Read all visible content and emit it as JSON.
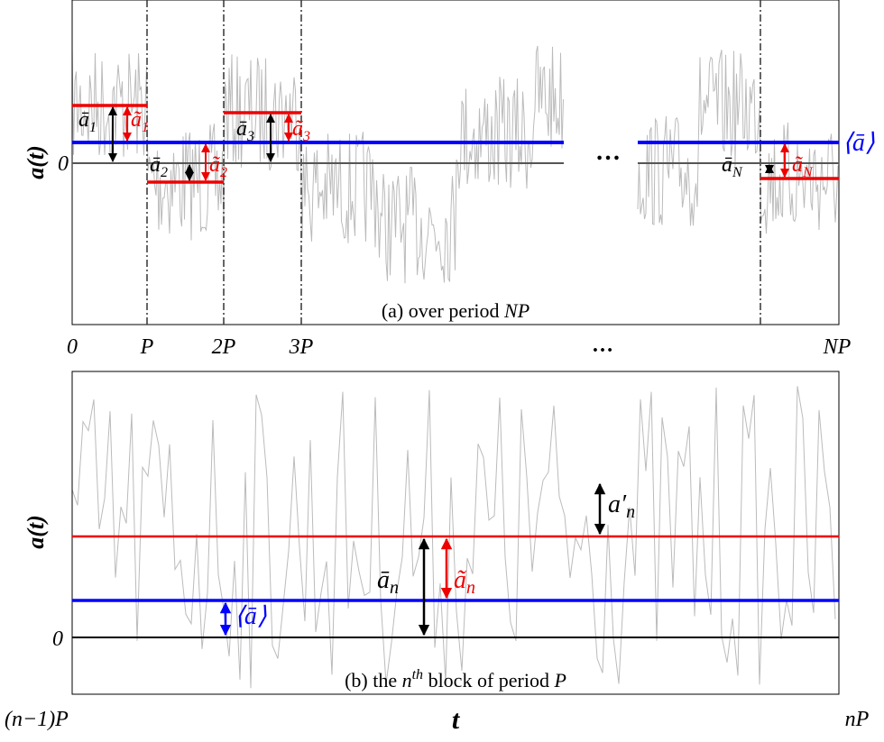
{
  "panel_a": {
    "y_label": "a(t)",
    "zero_label": "0",
    "caption": "(a) over period",
    "caption_var": "NP",
    "x_ticks": [
      "0",
      "P",
      "2P",
      "3P",
      "…",
      "NP"
    ],
    "gap": "…",
    "labels": {
      "mean_1": {
        "symbol": "ā",
        "sub": "1"
      },
      "dev_1": {
        "symbol": "ã",
        "sub": "1"
      },
      "mean_2": {
        "symbol": "ā",
        "sub": "2"
      },
      "dev_2": {
        "symbol": "ã",
        "sub": "2"
      },
      "mean_3": {
        "symbol": "ā",
        "sub": "3"
      },
      "dev_3": {
        "symbol": "ã",
        "sub": "3"
      },
      "mean_N": {
        "symbol": "ā",
        "sub": "N"
      },
      "dev_N": {
        "symbol": "ã",
        "sub": "N"
      },
      "global": "⟨ā⟩"
    }
  },
  "panel_b": {
    "y_label": "a(t)",
    "zero_label": "0",
    "caption": "(b) the",
    "caption_var": "n",
    "caption_sup": "th",
    "caption_rest": "block of period",
    "caption_var2": "P",
    "labels": {
      "mean_n": {
        "symbol": "ā",
        "sub": "n"
      },
      "dev_n": {
        "symbol": "ã",
        "sub": "n"
      },
      "fluct_n": {
        "symbol": "a′",
        "sub": "n"
      },
      "global": "⟨ā⟩"
    },
    "x_start": "(n−1)P",
    "x_label": "t",
    "x_end": "nP"
  }
}
